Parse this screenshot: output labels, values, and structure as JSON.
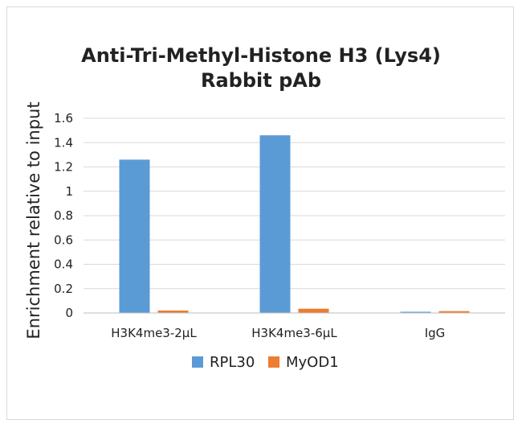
{
  "chart_data": {
    "type": "bar",
    "title_lines": [
      "Anti-Tri-Methyl-Histone H3 (Lys4)",
      "Rabbit pAb"
    ],
    "xlabel": "",
    "ylabel": "Enrichment relative to input",
    "categories": [
      "H3K4me3-2µL",
      "H3K4me3-6µL",
      "IgG"
    ],
    "series": [
      {
        "name": "RPL30",
        "color": "#5b9bd5",
        "values": [
          1.26,
          1.46,
          0.01
        ]
      },
      {
        "name": "MyOD1",
        "color": "#ed7d31",
        "values": [
          0.02,
          0.035,
          0.015
        ]
      }
    ],
    "ylim": [
      0,
      1.6
    ],
    "yticks": [
      0,
      0.2,
      0.4,
      0.6,
      0.8,
      1,
      1.2,
      1.4,
      1.6
    ],
    "ytick_labels": [
      "0",
      "0.2",
      "0.4",
      "0.6",
      "0.8",
      "1",
      "1.2",
      "1.4",
      "1.6"
    ],
    "grid": true,
    "legend_position": "bottom"
  }
}
